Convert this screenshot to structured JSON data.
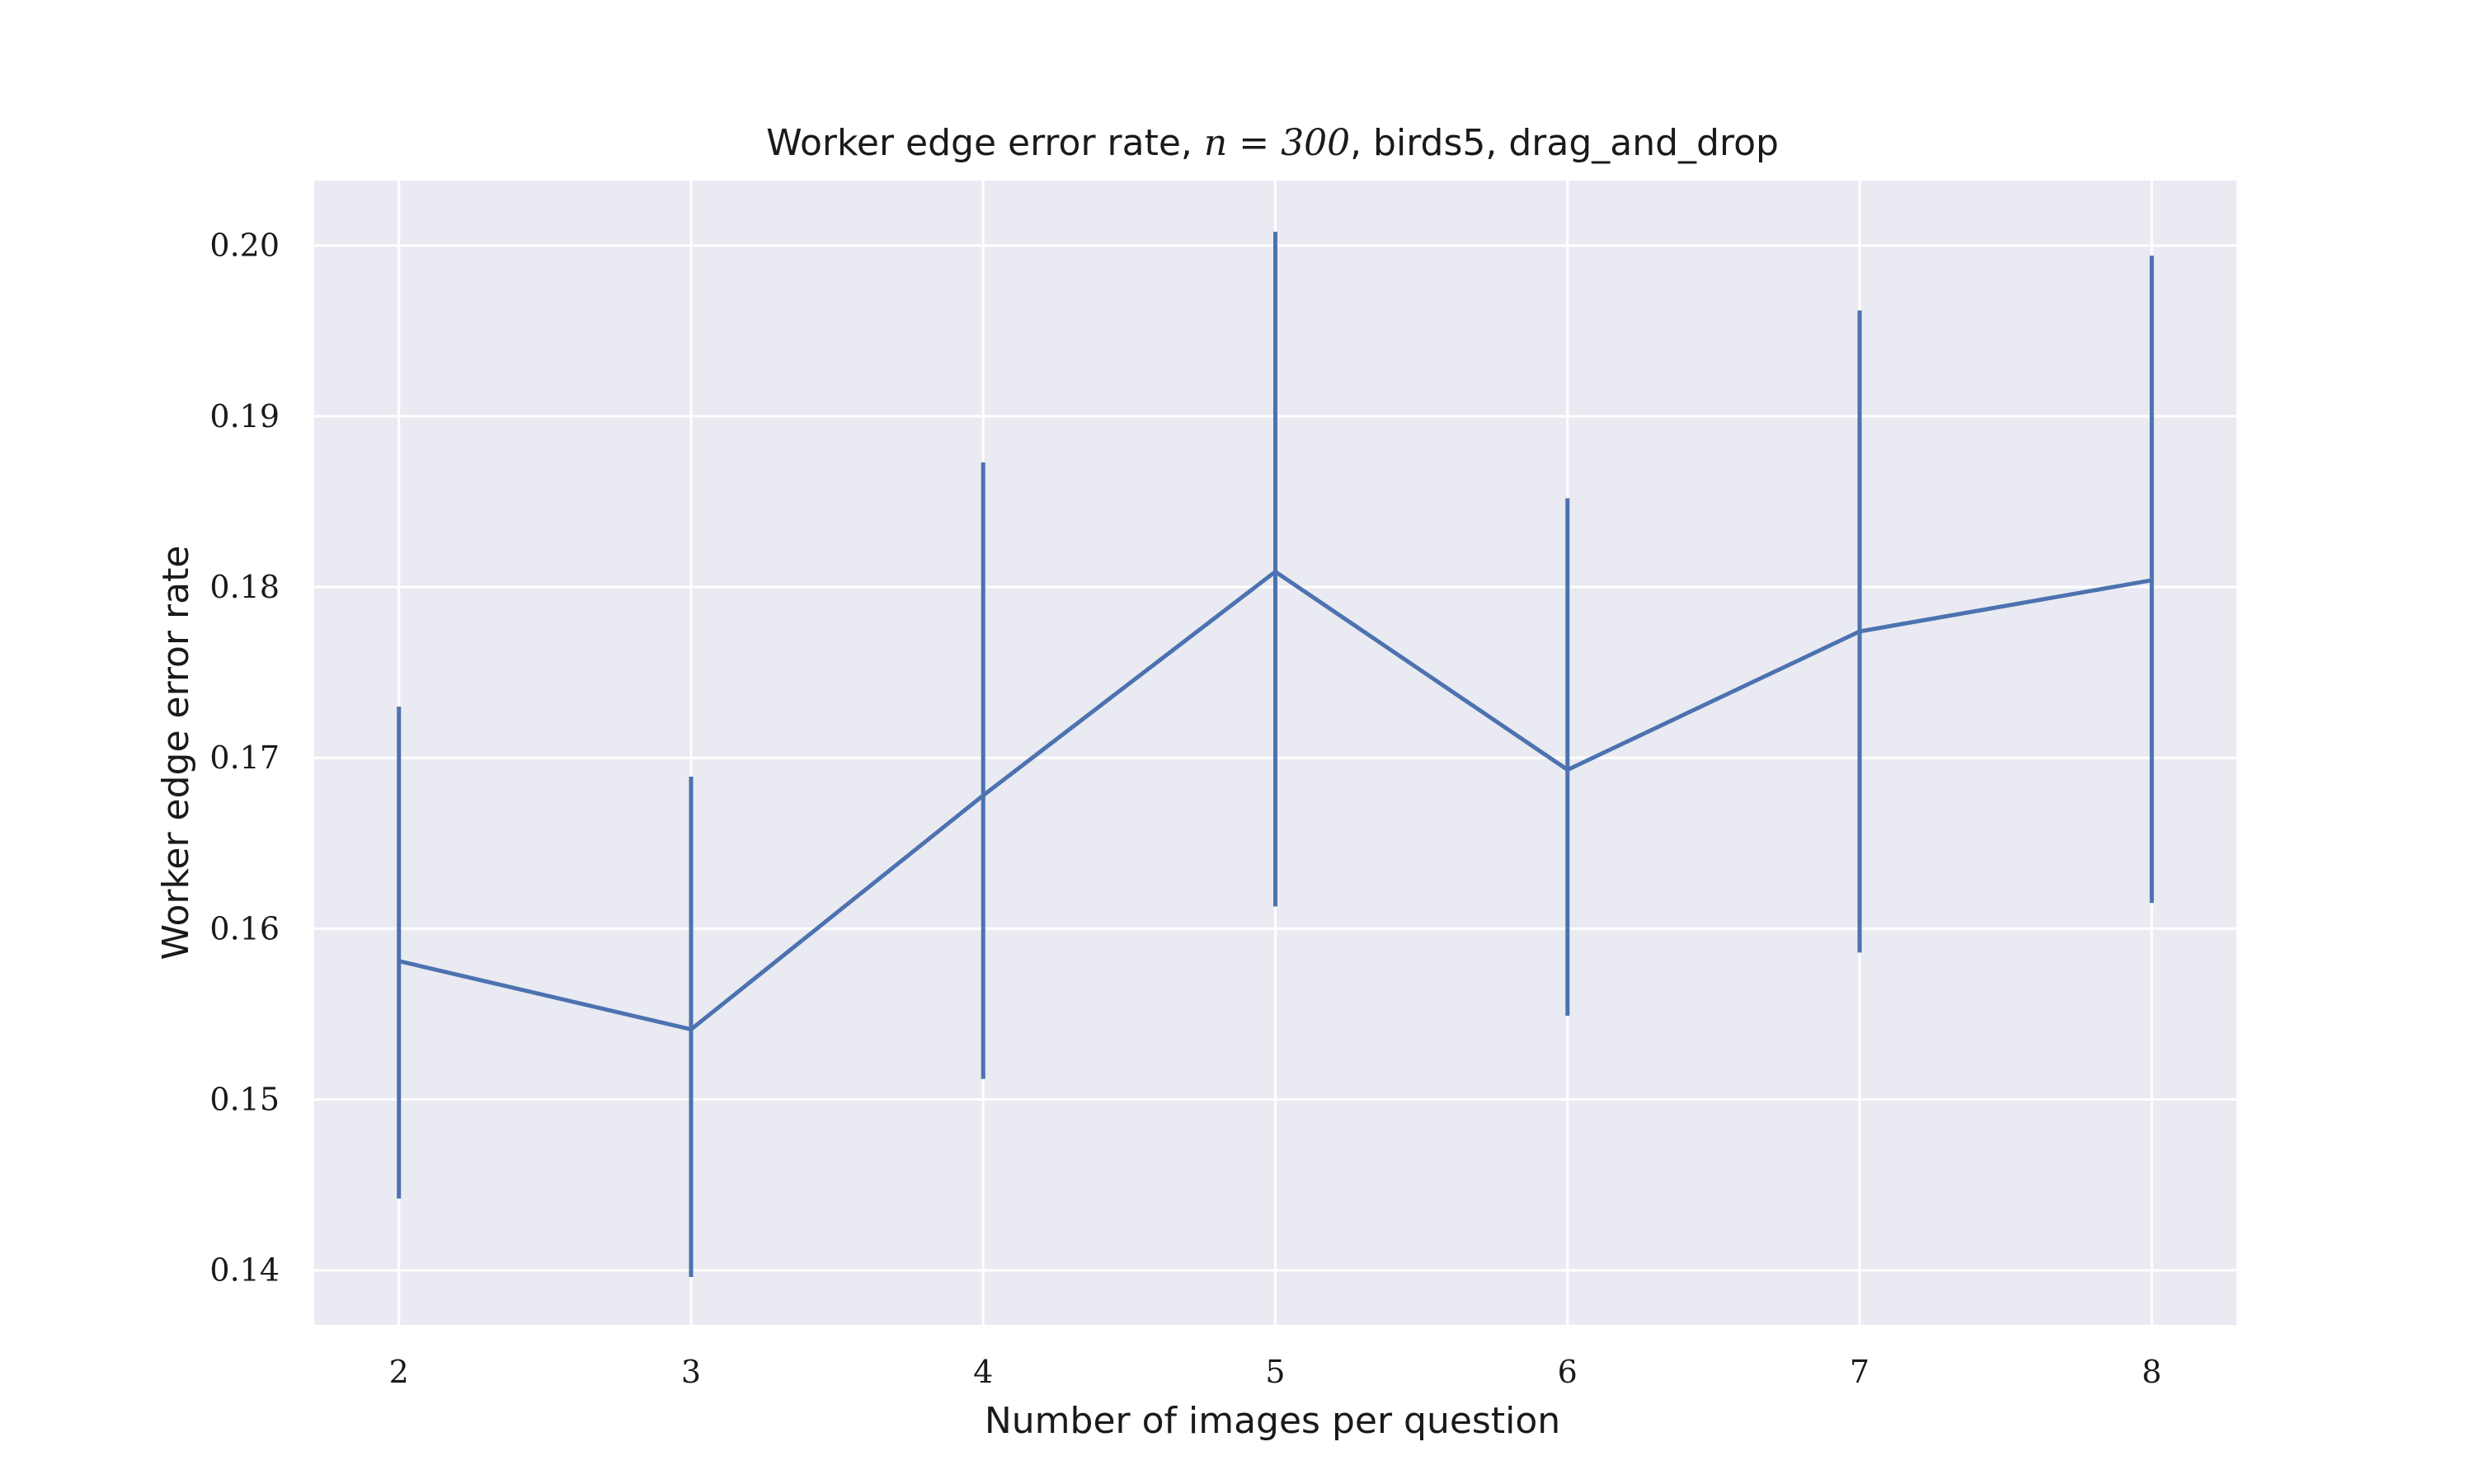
{
  "chart_data": {
    "type": "line",
    "title": "Worker edge error rate, n = 300, birds5, drag_and_drop",
    "title_parts": {
      "prefix": "Worker edge error rate, ",
      "math": "n = 300",
      "suffix": ", birds5, drag_and_drop"
    },
    "xlabel": "Number of images per question",
    "ylabel": "Worker edge error rate",
    "x": [
      2,
      3,
      4,
      5,
      6,
      7,
      8
    ],
    "xticks": [
      "2",
      "3",
      "4",
      "5",
      "6",
      "7",
      "8"
    ],
    "xlim": [
      1.71,
      8.29
    ],
    "yticks": [
      "0.14",
      "0.15",
      "0.16",
      "0.17",
      "0.18",
      "0.19",
      "0.20"
    ],
    "ytick_values": [
      0.14,
      0.15,
      0.16,
      0.17,
      0.18,
      0.19,
      0.2
    ],
    "ylim": [
      0.1368,
      0.2038
    ],
    "grid": true,
    "series": [
      {
        "values": [
          0.1581,
          0.1541,
          0.1678,
          0.1809,
          0.1693,
          0.1774,
          0.1804
        ],
        "err_low": [
          0.1442,
          0.1396,
          0.1512,
          0.1613,
          0.1549,
          0.1586,
          0.1615
        ],
        "err_high": [
          0.173,
          0.1689,
          0.1873,
          0.2008,
          0.1852,
          0.1962,
          0.1994
        ],
        "color": "#4c72b0"
      }
    ],
    "colors": {
      "plot_background": "#eaeaf2",
      "grid": "#ffffff",
      "text": "#1a1a1a",
      "line": "#4c72b0"
    }
  }
}
